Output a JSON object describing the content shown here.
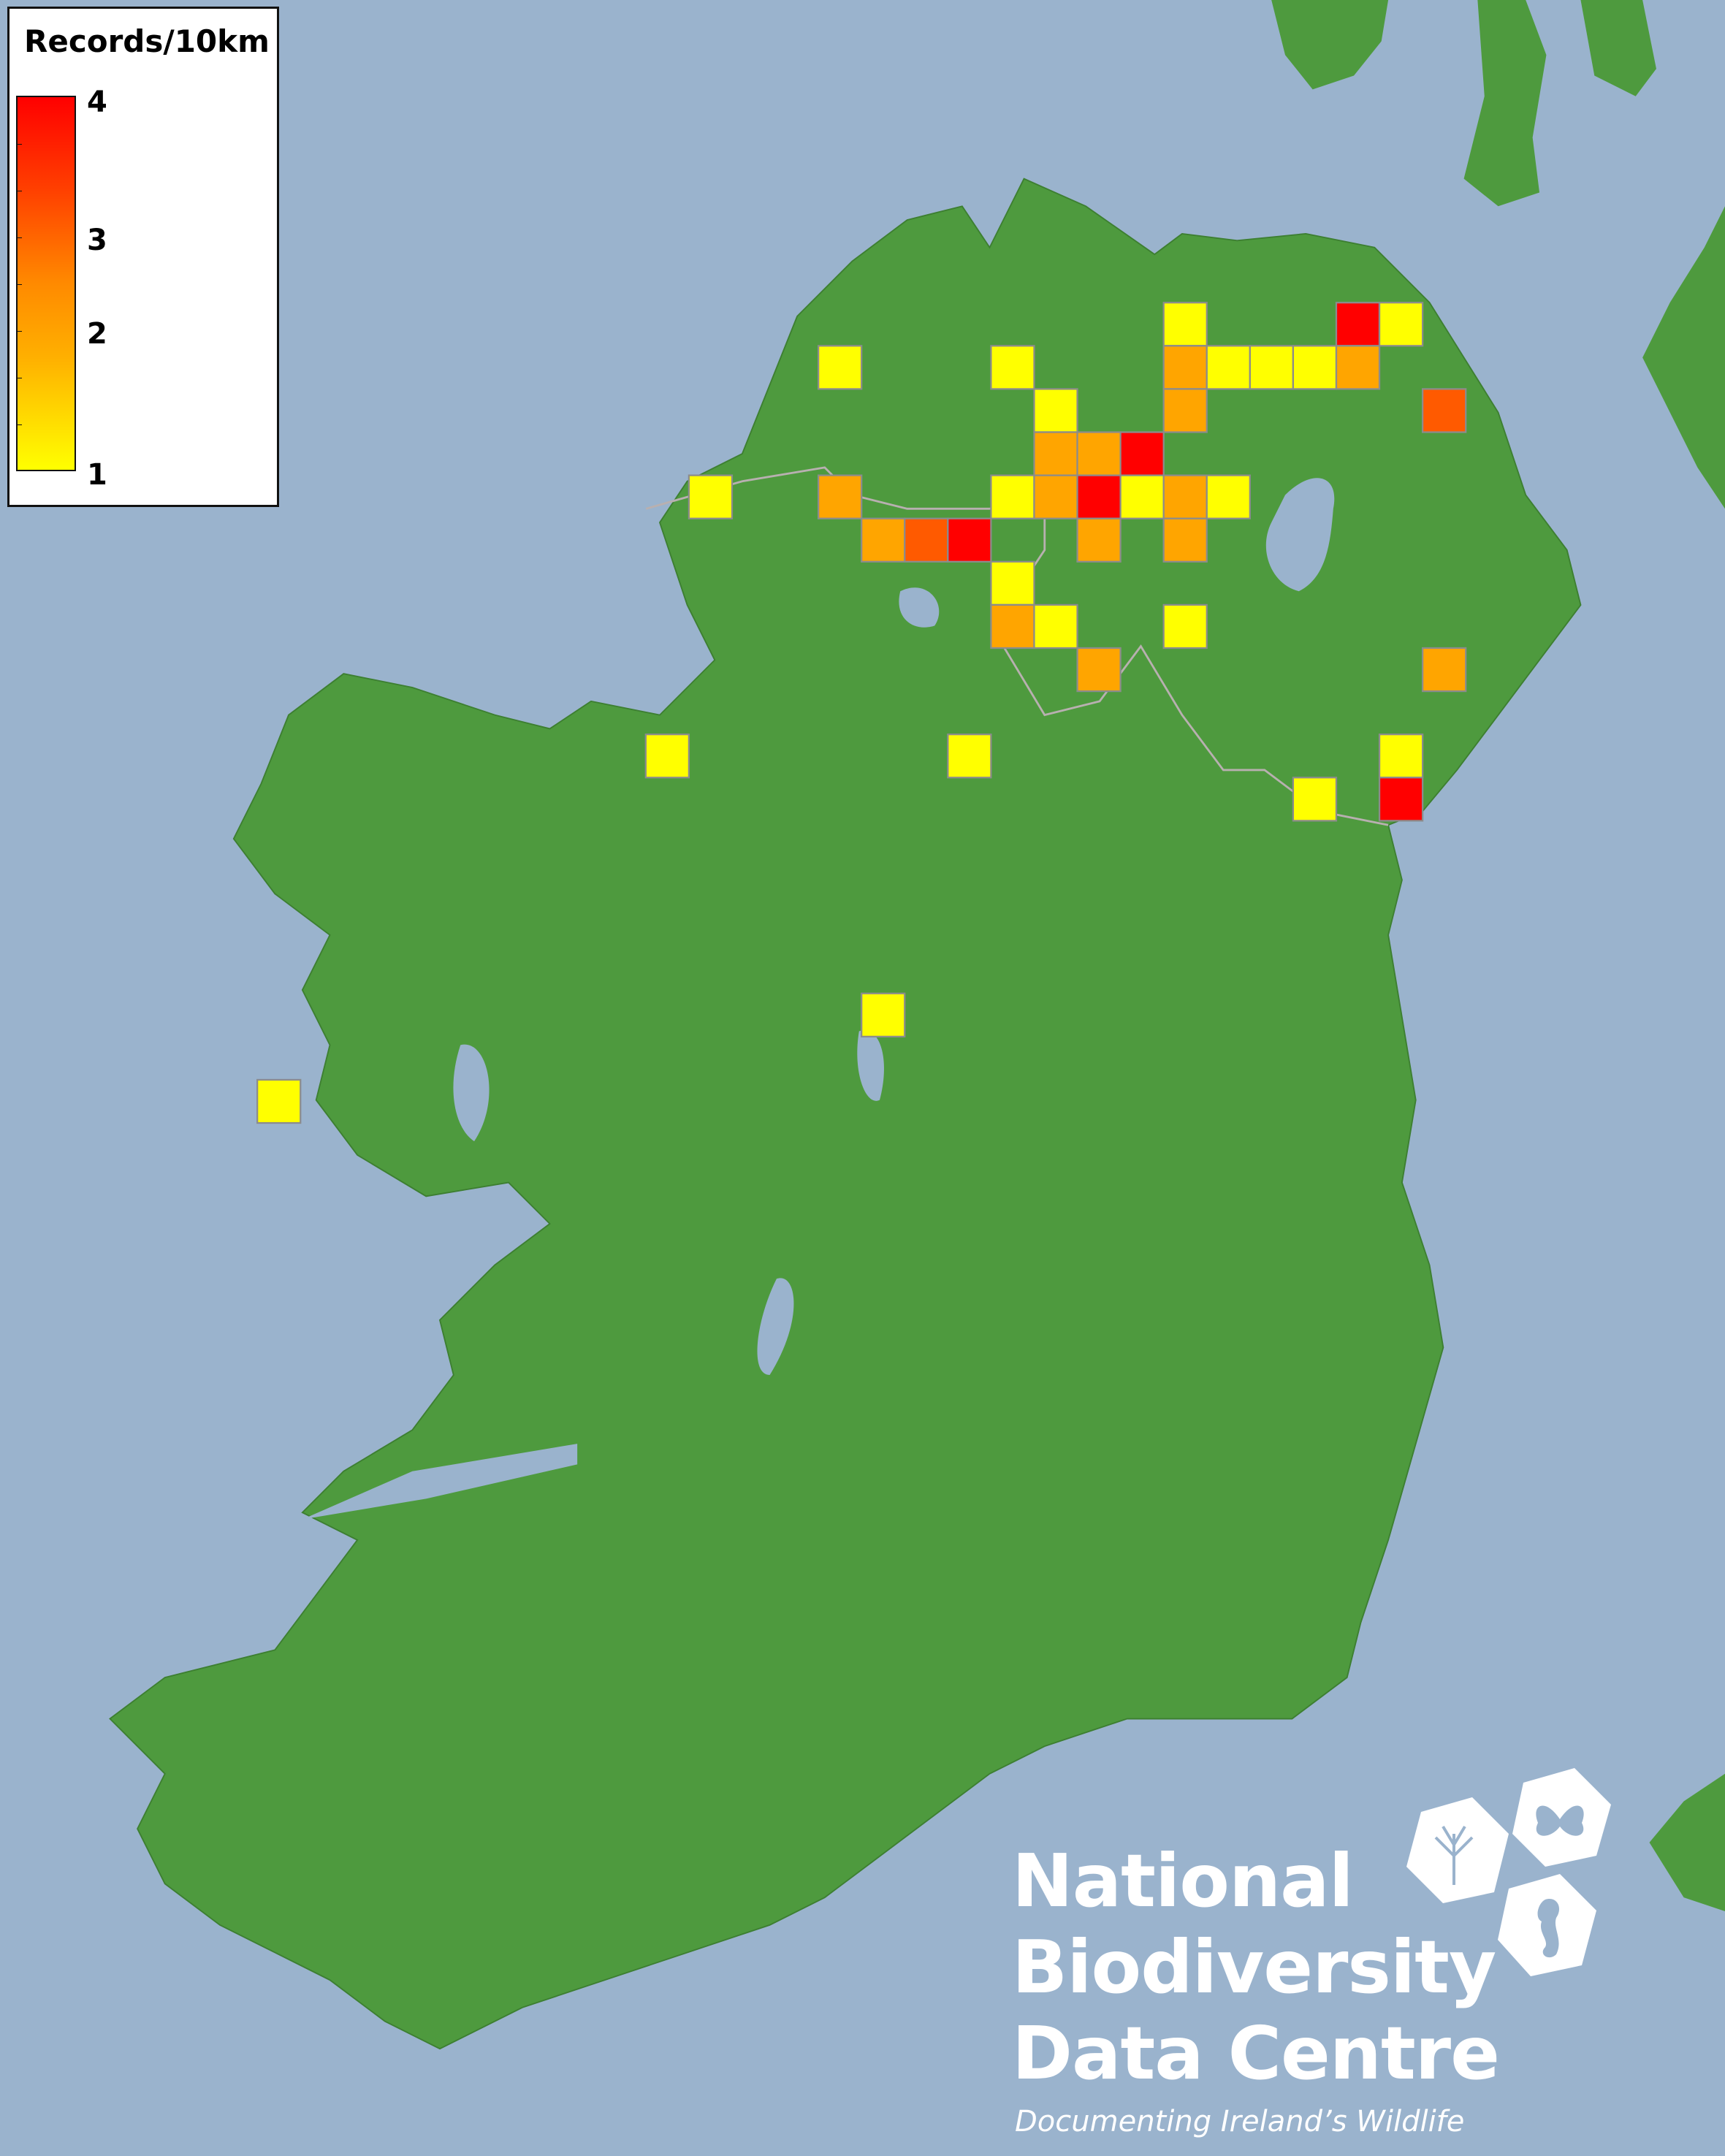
{
  "legend": {
    "title": "Records/10km",
    "ticks": [
      "4",
      "3",
      "2",
      "1"
    ],
    "color_low": "#ffff00",
    "color_high": "#ff0000"
  },
  "colors": {
    "sea": "#9ab3cd",
    "land": "#4e9a3e",
    "lake": "#9ab3cd",
    "records_1": "#ffff00",
    "records_2": "#ffa500",
    "records_3": "#ff5a00",
    "records_4": "#ff0000"
  },
  "cells": [
    {
      "col": 21,
      "row": 0,
      "records": 1
    },
    {
      "col": 25,
      "row": 0,
      "records": 4
    },
    {
      "col": 26,
      "row": 0,
      "records": 1
    },
    {
      "col": 13,
      "row": 1,
      "records": 1
    },
    {
      "col": 17,
      "row": 1,
      "records": 1
    },
    {
      "col": 21,
      "row": 1,
      "records": 2
    },
    {
      "col": 22,
      "row": 1,
      "records": 1
    },
    {
      "col": 23,
      "row": 1,
      "records": 1
    },
    {
      "col": 24,
      "row": 1,
      "records": 1
    },
    {
      "col": 25,
      "row": 1,
      "records": 2
    },
    {
      "col": 18,
      "row": 2,
      "records": 1
    },
    {
      "col": 21,
      "row": 2,
      "records": 2
    },
    {
      "col": 27,
      "row": 2,
      "records": 3
    },
    {
      "col": 18,
      "row": 3,
      "records": 2
    },
    {
      "col": 19,
      "row": 3,
      "records": 2
    },
    {
      "col": 20,
      "row": 3,
      "records": 4
    },
    {
      "col": 10,
      "row": 4,
      "records": 1
    },
    {
      "col": 13,
      "row": 4,
      "records": 2
    },
    {
      "col": 17,
      "row": 4,
      "records": 1
    },
    {
      "col": 18,
      "row": 4,
      "records": 2
    },
    {
      "col": 19,
      "row": 4,
      "records": 4
    },
    {
      "col": 20,
      "row": 4,
      "records": 1
    },
    {
      "col": 21,
      "row": 4,
      "records": 2
    },
    {
      "col": 22,
      "row": 4,
      "records": 1
    },
    {
      "col": 14,
      "row": 5,
      "records": 2
    },
    {
      "col": 15,
      "row": 5,
      "records": 3
    },
    {
      "col": 16,
      "row": 5,
      "records": 4
    },
    {
      "col": 19,
      "row": 5,
      "records": 2
    },
    {
      "col": 21,
      "row": 5,
      "records": 2
    },
    {
      "col": 17,
      "row": 6,
      "records": 1
    },
    {
      "col": 17,
      "row": 7,
      "records": 2
    },
    {
      "col": 18,
      "row": 7,
      "records": 1
    },
    {
      "col": 21,
      "row": 7,
      "records": 1
    },
    {
      "col": 19,
      "row": 8,
      "records": 2
    },
    {
      "col": 27,
      "row": 8,
      "records": 2
    },
    {
      "col": 9,
      "row": 10,
      "records": 1
    },
    {
      "col": 16,
      "row": 10,
      "records": 1
    },
    {
      "col": 26,
      "row": 10,
      "records": 1
    },
    {
      "col": 24,
      "row": 11,
      "records": 1
    },
    {
      "col": 26,
      "row": 11,
      "records": 4
    },
    {
      "col": 14,
      "row": 16,
      "records": 1
    },
    {
      "col": 0,
      "row": 18,
      "records": 1
    }
  ],
  "logo": {
    "line1": "National",
    "line2": "Biodiversity",
    "line3": "Data Centre",
    "tagline": "Documenting Ireland’s Wildlife"
  }
}
